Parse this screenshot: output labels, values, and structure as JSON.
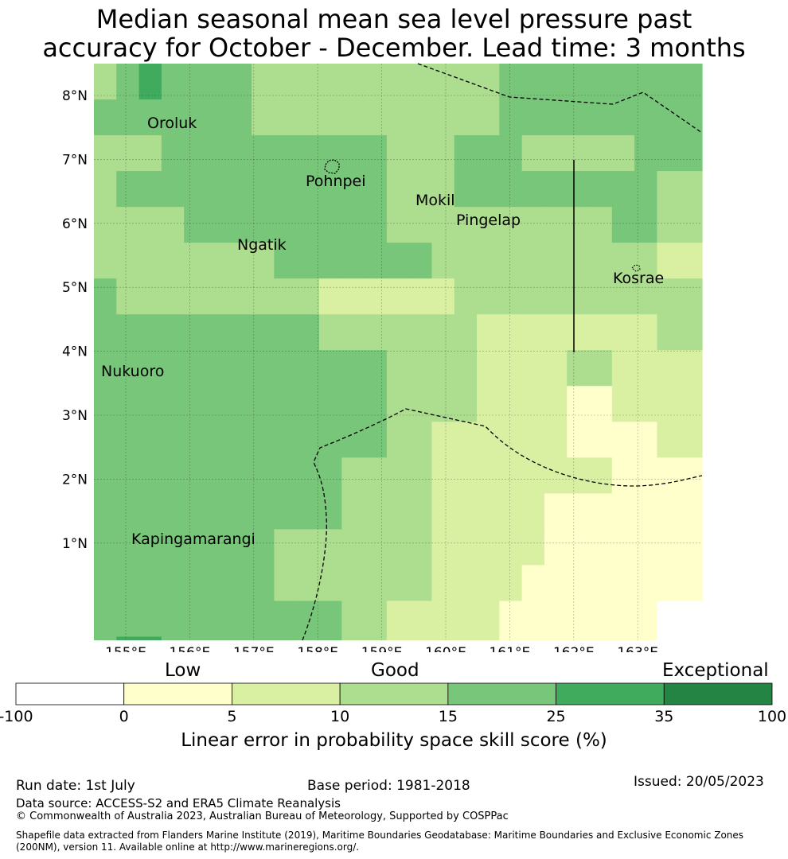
{
  "title_line1": "Median seasonal mean sea level pressure past",
  "title_line2": "accuracy for October - December. Lead time: 3 months",
  "latitude_labels": [
    "8°N",
    "7°N",
    "6°N",
    "5°N",
    "4°N",
    "3°N",
    "2°N",
    "1°N"
  ],
  "longitude_labels": [
    "155°E",
    "156°E",
    "157°E",
    "158°E",
    "159°E",
    "160°E",
    "161°E",
    "162°E",
    "163°E"
  ],
  "places": [
    "Oroluk",
    "Pohnpei",
    "Mokil",
    "Pingelap",
    "Ngatik",
    "Kosrae",
    "Nukuoro",
    "Kapingamarangi"
  ],
  "colorbar": {
    "categories": [
      "Low",
      "Good",
      "Exceptional"
    ],
    "ticks": [
      "-100",
      "0",
      "5",
      "10",
      "15",
      "25",
      "35",
      "100"
    ],
    "colors": [
      "#ffffff",
      "#ffffcc",
      "#d9f0a3",
      "#addd8e",
      "#78c679",
      "#41ab5d",
      "#238443"
    ],
    "title": "Linear error in probability space skill score (%)"
  },
  "grid_colors": [
    "#addd8e,#78c679,#41ab5d,#78c679,#78c679,#78c679,#78c679,#addd8e,#addd8e,#addd8e,#addd8e,#addd8e,#addd8e,#addd8e,#addd8e,#addd8e,#addd8e,#addd8e,#78c679,#78c679,#78c679,#78c679,#78c679,#78c679,#78c679,#78c679,#78c679",
    "#78c679,#78c679,#78c679,#78c679,#78c679,#78c679,#78c679,#addd8e,#addd8e,#addd8e,#addd8e,#addd8e,#addd8e,#addd8e,#addd8e,#addd8e,#addd8e,#addd8e,#78c679,#78c679,#78c679,#78c679,#78c679,#78c679,#78c679,#78c679,#78c679",
    "#addd8e,#addd8e,#addd8e,#78c679,#78c679,#78c679,#78c679,#78c679,#78c679,#78c679,#78c679,#78c679,#78c679,#addd8e,#addd8e,#addd8e,#78c679,#78c679,#78c679,#addd8e,#addd8e,#addd8e,#addd8e,#addd8e,#78c679,#78c679,#78c679",
    "#addd8e,#78c679,#78c679,#78c679,#78c679,#78c679,#78c679,#78c679,#78c679,#78c679,#78c679,#78c679,#78c679,#addd8e,#addd8e,#addd8e,#78c679,#78c679,#78c679,#78c679,#78c679,#78c679,#78c679,#78c679,#78c679,#addd8e,#addd8e",
    "#addd8e,#addd8e,#addd8e,#addd8e,#78c679,#78c679,#78c679,#78c679,#78c679,#78c679,#78c679,#78c679,#78c679,#addd8e,#addd8e,#addd8e,#addd8e,#addd8e,#addd8e,#addd8e,#addd8e,#addd8e,#addd8e,#78c679,#78c679,#addd8e,#addd8e",
    "#addd8e,#addd8e,#addd8e,#addd8e,#addd8e,#addd8e,#addd8e,#addd8e,#78c679,#78c679,#78c679,#78c679,#78c679,#78c679,#78c679,#addd8e,#addd8e,#addd8e,#addd8e,#addd8e,#addd8e,#addd8e,#addd8e,#addd8e,#addd8e,#d9f0a3,#d9f0a3",
    "#78c679,#addd8e,#addd8e,#addd8e,#addd8e,#addd8e,#addd8e,#addd8e,#addd8e,#addd8e,#d9f0a3,#d9f0a3,#d9f0a3,#d9f0a3,#d9f0a3,#d9f0a3,#addd8e,#addd8e,#addd8e,#addd8e,#addd8e,#addd8e,#addd8e,#addd8e,#addd8e,#addd8e,#addd8e",
    "#78c679,#78c679,#78c679,#78c679,#78c679,#78c679,#78c679,#78c679,#78c679,#78c679,#addd8e,#addd8e,#addd8e,#addd8e,#addd8e,#addd8e,#addd8e,#d9f0a3,#d9f0a3,#d9f0a3,#d9f0a3,#d9f0a3,#d9f0a3,#d9f0a3,#d9f0a3,#addd8e,#addd8e",
    "#78c679,#78c679,#78c679,#78c679,#78c679,#78c679,#78c679,#78c679,#78c679,#78c679,#78c679,#78c679,#78c679,#addd8e,#addd8e,#addd8e,#addd8e,#d9f0a3,#d9f0a3,#d9f0a3,#d9f0a3,#addd8e,#addd8e,#d9f0a3,#d9f0a3,#d9f0a3,#d9f0a3",
    "#78c679,#78c679,#78c679,#78c679,#78c679,#78c679,#78c679,#78c679,#78c679,#78c679,#78c679,#78c679,#78c679,#addd8e,#addd8e,#addd8e,#addd8e,#d9f0a3,#d9f0a3,#d9f0a3,#d9f0a3,#ffffcc,#ffffcc,#d9f0a3,#d9f0a3,#d9f0a3,#d9f0a3",
    "#78c679,#78c679,#78c679,#78c679,#78c679,#78c679,#78c679,#78c679,#78c679,#78c679,#78c679,#78c679,#78c679,#addd8e,#addd8e,#d9f0a3,#d9f0a3,#d9f0a3,#d9f0a3,#d9f0a3,#d9f0a3,#ffffcc,#ffffcc,#ffffcc,#ffffcc,#d9f0a3,#d9f0a3",
    "#78c679,#78c679,#78c679,#78c679,#78c679,#78c679,#78c679,#78c679,#78c679,#78c679,#78c679,#addd8e,#addd8e,#addd8e,#addd8e,#d9f0a3,#d9f0a3,#d9f0a3,#d9f0a3,#d9f0a3,#d9f0a3,#d9f0a3,#d9f0a3,#ffffcc,#ffffcc,#ffffcc,#ffffcc",
    "#78c679,#78c679,#78c679,#78c679,#78c679,#78c679,#78c679,#78c679,#78c679,#78c679,#78c679,#addd8e,#addd8e,#addd8e,#addd8e,#d9f0a3,#d9f0a3,#d9f0a3,#d9f0a3,#d9f0a3,#ffffcc,#ffffcc,#ffffcc,#ffffcc,#ffffcc,#ffffcc,#ffffcc",
    "#78c679,#78c679,#78c679,#78c679,#78c679,#78c679,#78c679,#78c679,#addd8e,#addd8e,#addd8e,#addd8e,#addd8e,#addd8e,#addd8e,#d9f0a3,#d9f0a3,#d9f0a3,#d9f0a3,#d9f0a3,#ffffcc,#ffffcc,#ffffcc,#ffffcc,#ffffcc,#ffffcc,#ffffcc",
    "#78c679,#78c679,#78c679,#78c679,#78c679,#78c679,#78c679,#78c679,#addd8e,#addd8e,#addd8e,#addd8e,#addd8e,#addd8e,#addd8e,#d9f0a3,#d9f0a3,#d9f0a3,#d9f0a3,#ffffcc,#ffffcc,#ffffcc,#ffffcc,#ffffcc,#ffffcc,#ffffcc,#ffffcc",
    "#78c679,#78c679,#78c679,#78c679,#78c679,#78c679,#78c679,#78c679,#78c679,#78c679,#78c679,#addd8e,#addd8e,#d9f0a3,#d9f0a3,#d9f0a3,#d9f0a3,#d9f0a3,#ffffcc,#ffffcc,#ffffcc,#ffffcc,#ffffcc,#ffffcc,#ffffcc,#ffffff,#ffffff",
    "#78c679,#41ab5d,#41ab5d,#78c679,#78c679,#78c679,#78c679,#78c679,#78c679,#78c679,#78c679,#addd8e,#addd8e,#d9f0a3,#d9f0a3,#d9f0a3,#d9f0a3,#d9f0a3,#ffffcc,#ffffcc,#ffffcc,#ffffcc,#ffffcc,#ffffcc,#ffffcc,#ffffff,#ffffff"
  ],
  "footer": {
    "run_date": "Run date: 1st July",
    "base_period": "Base period: 1981-2018",
    "issued": "Issued: 20/05/2023",
    "data_source": "Data source: ACCESS-S2 and ERA5 Climate Reanalysis",
    "copyright": "© Commonwealth of Australia 2023, Australian Bureau of Meteorology, Supported by COSPPac",
    "shapefile_line1": "Shapefile data extracted from Flanders Marine Institute (2019), Maritime Boundaries Geodatabase: Maritime Boundaries and Exclusive Economic Zones",
    "shapefile_line2": "(200NM), version 11. Available online at http://www.marineregions.org/."
  }
}
